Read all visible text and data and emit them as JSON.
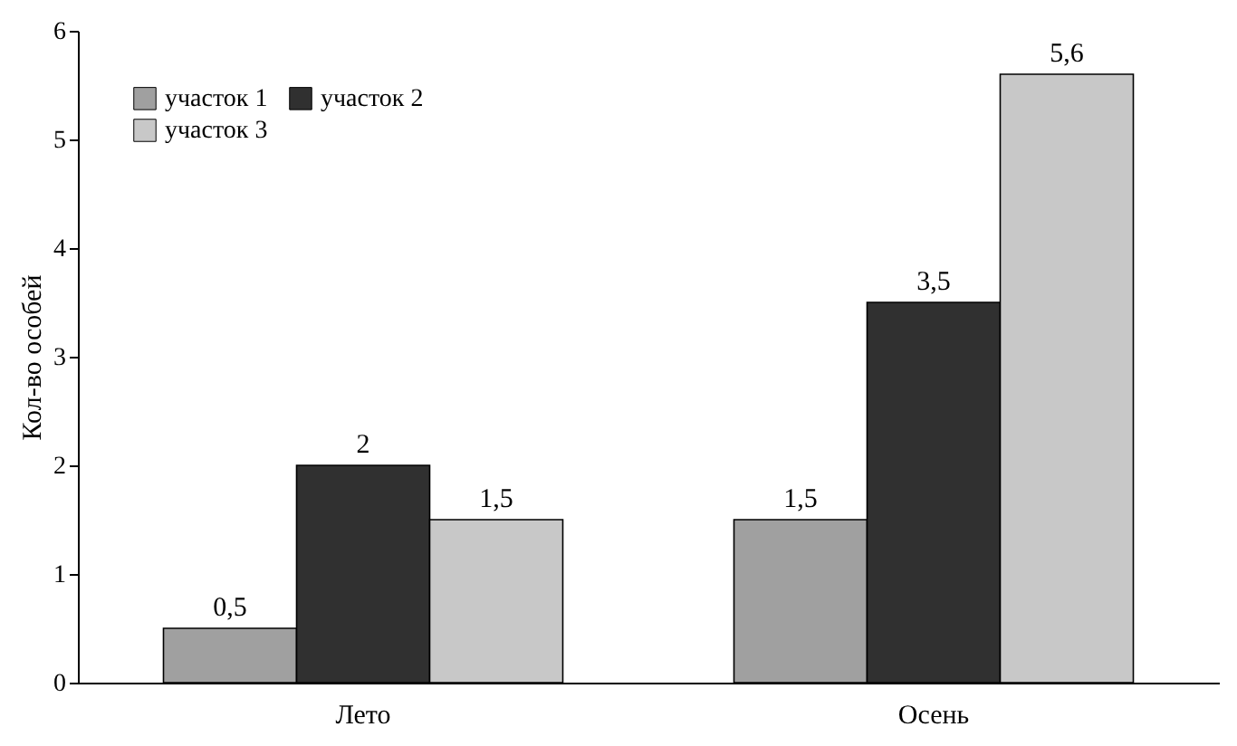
{
  "chart_data": {
    "type": "bar",
    "ylabel": "Кол-во особей",
    "categories": [
      "Лето",
      "Осень"
    ],
    "series": [
      {
        "name": "участок 1",
        "color": "#a0a0a0",
        "values": [
          0.5,
          1.5
        ],
        "value_labels": [
          "0,5",
          "1,5"
        ]
      },
      {
        "name": "участок 2",
        "color": "#303030",
        "values": [
          2,
          3.5
        ],
        "value_labels": [
          "2",
          "3,5"
        ]
      },
      {
        "name": "участок 3",
        "color": "#c8c8c8",
        "values": [
          1.5,
          5.6
        ],
        "value_labels": [
          "1,5",
          "5,6"
        ]
      }
    ],
    "ylim": [
      0,
      6
    ],
    "yticks": [
      0,
      1,
      2,
      3,
      4,
      5,
      6
    ],
    "grid": false,
    "legend": "top left"
  }
}
